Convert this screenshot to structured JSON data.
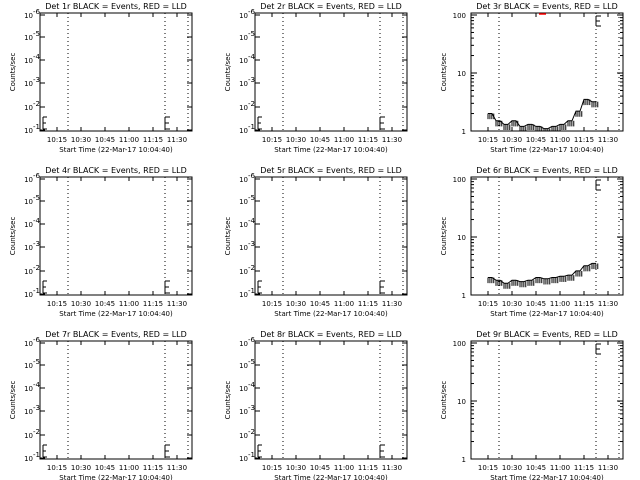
{
  "xlabel": "Start Time (22-Mar-17 10:04:40)",
  "ylabel": "Counts/sec",
  "xtick_labels": [
    "10:15",
    "10:30",
    "10:45",
    "11:00",
    "11:15",
    "11:30"
  ],
  "log_ticks_small": [
    "10",
    "10",
    "10",
    "10",
    "10",
    "10"
  ],
  "log_ticks_small_exp": [
    "-6",
    "-5",
    "-4",
    "-3",
    "-2",
    "-1"
  ],
  "log_ticks_large": [
    "1",
    "10",
    "100"
  ],
  "colors": {
    "events": "#000000",
    "lld": "#ff0000",
    "marker": "#000000"
  },
  "chart_data": [
    {
      "type": "line",
      "title": "Det 1r BLACK = Events, RED = LLD",
      "yscale": "log",
      "ylim": [
        1e-06,
        1.2
      ],
      "x": [],
      "series": []
    },
    {
      "type": "line",
      "title": "Det 2r BLACK = Events, RED = LLD",
      "yscale": "log",
      "ylim": [
        1e-06,
        1.2
      ],
      "x": [],
      "series": []
    },
    {
      "type": "line",
      "title": "Det 3r BLACK = Events, RED = LLD",
      "yscale": "log",
      "ylim": [
        1,
        100
      ],
      "x": [
        "10:15",
        "10:20",
        "10:25",
        "10:30",
        "10:35",
        "10:40",
        "10:45",
        "10:50",
        "10:55",
        "11:00",
        "11:05",
        "11:10",
        "11:15",
        "11:20"
      ],
      "series": [
        {
          "values": [
            2,
            1.5,
            1.3,
            1.5,
            1.2,
            1.3,
            1.2,
            1.1,
            1.2,
            1.3,
            1.5,
            2.2,
            3.5,
            3.2
          ]
        }
      ]
    },
    {
      "type": "line",
      "title": "Det 4r BLACK = Events, RED = LLD",
      "yscale": "log",
      "ylim": [
        1e-06,
        1.2
      ],
      "x": [],
      "series": []
    },
    {
      "type": "line",
      "title": "Det 5r BLACK = Events, RED = LLD",
      "yscale": "log",
      "ylim": [
        1e-06,
        1.2
      ],
      "x": [],
      "series": []
    },
    {
      "type": "line",
      "title": "Det 6r BLACK = Events, RED = LLD",
      "yscale": "log",
      "ylim": [
        1,
        100
      ],
      "x": [
        "10:15",
        "10:20",
        "10:25",
        "10:30",
        "10:35",
        "10:40",
        "10:45",
        "10:50",
        "10:55",
        "11:00",
        "11:05",
        "11:10",
        "11:15",
        "11:20"
      ],
      "series": [
        {
          "values": [
            2,
            1.8,
            1.6,
            1.8,
            1.7,
            1.8,
            2.0,
            1.9,
            2.0,
            2.1,
            2.2,
            2.6,
            3.2,
            3.5
          ]
        }
      ]
    },
    {
      "type": "line",
      "title": "Det 7r BLACK = Events, RED = LLD",
      "yscale": "log",
      "ylim": [
        1e-06,
        1.2
      ],
      "x": [],
      "series": []
    },
    {
      "type": "line",
      "title": "Det 8r BLACK = Events, RED = LLD",
      "yscale": "log",
      "ylim": [
        1e-06,
        1.2
      ],
      "x": [],
      "series": []
    },
    {
      "type": "line",
      "title": "Det 9r BLACK = Events, RED = LLD",
      "yscale": "log",
      "ylim": [
        1,
        100
      ],
      "x": [],
      "series": []
    }
  ]
}
